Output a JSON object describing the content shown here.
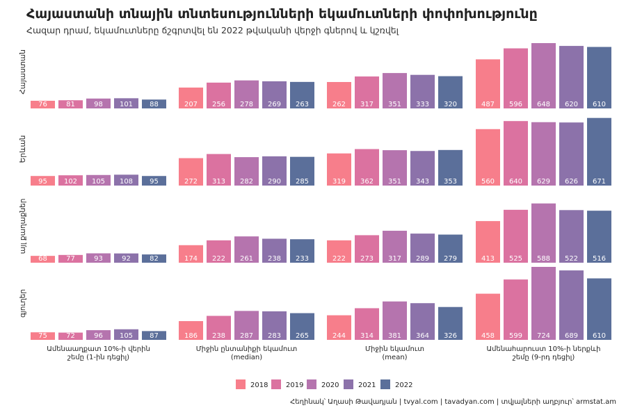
{
  "title": "Հայաստանի տնային տնտեսությունների եկամուտների փոփոխությունը",
  "subtitle": "Հազար դրամ, եկամուտները ճշգրտվել են 2022 թվականի վերջի գներով և կշռվել",
  "caption": "Հեղինակ՝ Աղասի Թավադյան   |   tvyal.com   |   tavadyan.com    |    տվյալների աղբյուր՝ armstat.am",
  "chart_data": {
    "type": "bar",
    "facet_rows": [
      "Հայաստան",
      "Երևան",
      "այլ քաղաքներ",
      "գյուղեր"
    ],
    "categories": [
      [
        "Ամենաաղքատ 10%-ի վերին",
        "շեմը (1-ին դեցիլ)"
      ],
      [
        "Միջին ընտանիքի եկամուտ",
        "(median)"
      ],
      [
        "Միջին եկամուտ",
        "(mean)"
      ],
      [
        "Ամենահարուստ 10%-ի ներքևի",
        "շեմը (9-րդ դեցիլ)"
      ]
    ],
    "series_names": [
      "2018",
      "2019",
      "2020",
      "2021",
      "2022"
    ],
    "colors": [
      "#f77e8b",
      "#db72a0",
      "#b574ae",
      "#8c72aa",
      "#5b6f9a"
    ],
    "values": {
      "Հայաստան": [
        [
          76,
          81,
          98,
          101,
          88
        ],
        [
          207,
          256,
          278,
          269,
          263
        ],
        [
          262,
          317,
          351,
          333,
          320
        ],
        [
          487,
          596,
          648,
          620,
          610
        ]
      ],
      "Երևան": [
        [
          95,
          102,
          105,
          108,
          95
        ],
        [
          272,
          313,
          282,
          290,
          285
        ],
        [
          319,
          362,
          351,
          343,
          353
        ],
        [
          560,
          640,
          629,
          626,
          671
        ]
      ],
      "այլ քաղաքներ": [
        [
          68,
          77,
          93,
          92,
          82
        ],
        [
          174,
          222,
          261,
          238,
          233
        ],
        [
          222,
          273,
          317,
          289,
          279
        ],
        [
          413,
          525,
          588,
          522,
          516
        ]
      ],
      "գյուղեր": [
        [
          75,
          72,
          96,
          105,
          87
        ],
        [
          186,
          238,
          287,
          283,
          265
        ],
        [
          244,
          314,
          381,
          364,
          326
        ],
        [
          458,
          599,
          724,
          689,
          610
        ]
      ]
    },
    "grid": false,
    "legend_position": "bottom"
  }
}
